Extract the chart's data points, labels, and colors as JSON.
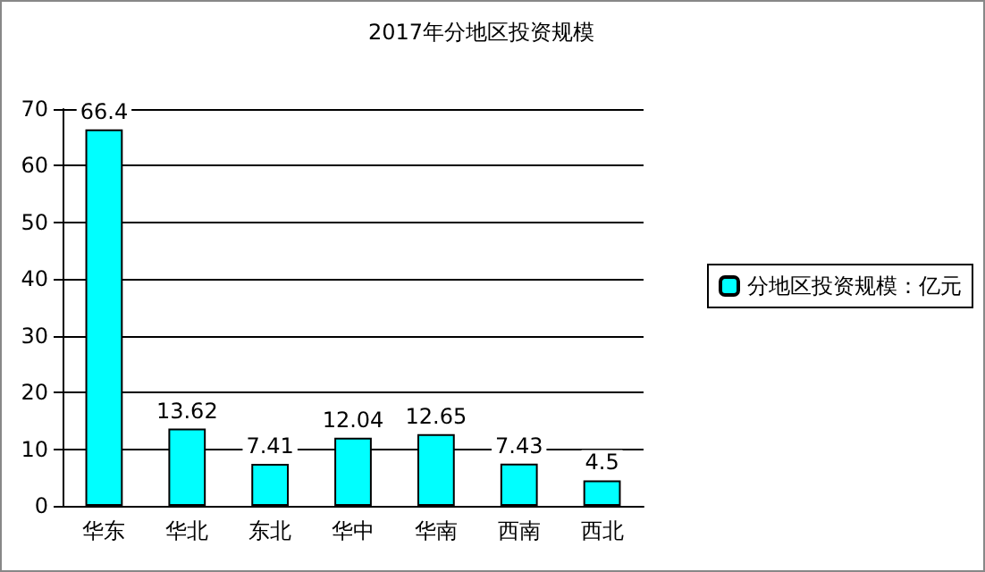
{
  "chart_data": {
    "type": "bar",
    "title": "2017年分地区投资规模",
    "categories": [
      "华东",
      "华北",
      "东北",
      "华中",
      "华南",
      "西南",
      "西北"
    ],
    "series": [
      {
        "name": "分地区投资规模：亿元",
        "color": "#00ffff",
        "values": [
          66.4,
          13.62,
          7.41,
          12.04,
          12.65,
          7.43,
          4.5
        ]
      }
    ],
    "ylim": [
      0,
      70
    ],
    "yticks": [
      0,
      10,
      20,
      30,
      40,
      50,
      60,
      70
    ],
    "grid": "y",
    "legend": "right",
    "data_labels": true
  }
}
